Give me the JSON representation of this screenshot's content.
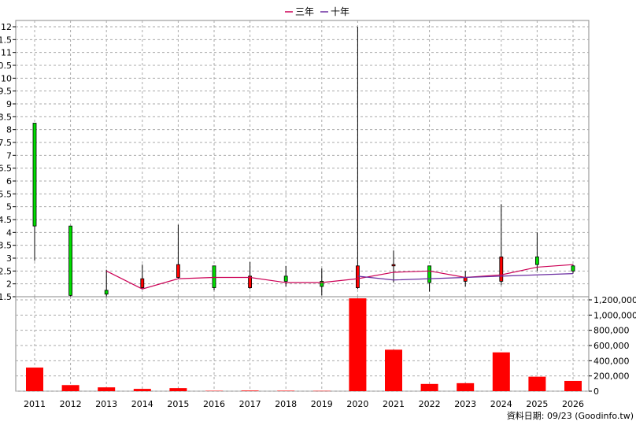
{
  "chart_data": {
    "type": "candlestick+bar",
    "legend": [
      {
        "label": "三年",
        "color": "#cc0055"
      },
      {
        "label": "十年",
        "color": "#6a2ca0"
      }
    ],
    "years": [
      "2011",
      "2012",
      "2013",
      "2014",
      "2015",
      "2016",
      "2017",
      "2018",
      "2019",
      "2020",
      "2021",
      "2022",
      "2023",
      "2024",
      "2025",
      "2026"
    ],
    "price_axis": {
      "min": 1.5,
      "max": 12,
      "ticks": [
        "1.5",
        "2",
        "2.5",
        "3",
        "3.5",
        "4",
        "4.5",
        "5",
        "5.5",
        "6",
        "6.5",
        "7",
        "7.5",
        "8",
        "8.5",
        "9",
        "9.5",
        "10",
        "10.5",
        "11",
        "11.5",
        "12"
      ],
      "grid": true
    },
    "volume_axis": {
      "min": 0,
      "max": 1200000,
      "ticks": [
        "0",
        "200,000",
        "400,000",
        "600,000",
        "800,000",
        "1,000,000",
        "1,200,000"
      ],
      "grid": true
    },
    "candles": [
      {
        "year": "2011",
        "open": 8.25,
        "close": 4.25,
        "high": 8.25,
        "low": 2.9
      },
      {
        "year": "2012",
        "open": 4.25,
        "close": 1.55,
        "high": 4.25,
        "low": 1.5
      },
      {
        "year": "2013",
        "open": 1.75,
        "close": 1.6,
        "high": 2.55,
        "low": 1.45
      },
      {
        "year": "2014",
        "open": 1.85,
        "close": 2.2,
        "high": 2.75,
        "low": 1.8
      },
      {
        "year": "2015",
        "open": 2.25,
        "close": 2.75,
        "high": 4.3,
        "low": 2.2
      },
      {
        "year": "2016",
        "open": 2.7,
        "close": 1.85,
        "high": 2.7,
        "low": 1.75
      },
      {
        "year": "2017",
        "open": 1.85,
        "close": 2.3,
        "high": 2.85,
        "low": 1.8
      },
      {
        "year": "2018",
        "open": 2.3,
        "close": 2.1,
        "high": 2.7,
        "low": 1.9
      },
      {
        "year": "2019",
        "open": 2.1,
        "close": 1.9,
        "high": 2.6,
        "low": 1.55
      },
      {
        "year": "2020",
        "open": 1.85,
        "close": 2.7,
        "high": 12,
        "low": 1.8
      },
      {
        "year": "2021",
        "open": 2.7,
        "close": 2.75,
        "high": 3.3,
        "low": 2.05
      },
      {
        "year": "2022",
        "open": 2.7,
        "close": 2.05,
        "high": 2.7,
        "low": 1.7
      },
      {
        "year": "2023",
        "open": 2.1,
        "close": 2.25,
        "high": 2.5,
        "low": 1.9
      },
      {
        "year": "2024",
        "open": 2.1,
        "close": 3.05,
        "high": 5.1,
        "low": 1.95
      },
      {
        "year": "2025",
        "open": 3.05,
        "close": 2.75,
        "high": 4.0,
        "low": 2.5
      },
      {
        "year": "2026",
        "open": 2.7,
        "close": 2.5,
        "high": 2.75,
        "low": 2.4
      }
    ],
    "avg3_line": {
      "from_year": "2013",
      "values": [
        2.5,
        1.8,
        2.2,
        2.25,
        2.25,
        2.05,
        2.05,
        2.2,
        2.45,
        2.5,
        2.25,
        2.35,
        2.65,
        2.75
      ]
    },
    "avg10_line": {
      "from_year": "2020",
      "values": [
        2.3,
        2.15,
        2.2,
        2.25,
        2.3,
        2.35,
        2.4
      ]
    },
    "volumes": [
      310000,
      80000,
      50000,
      30000,
      40000,
      5000,
      8000,
      6000,
      4000,
      1220000,
      545000,
      95000,
      105000,
      510000,
      190000,
      135000
    ]
  },
  "source_note": "資料日期: 09/23 (Goodinfo.tw)"
}
